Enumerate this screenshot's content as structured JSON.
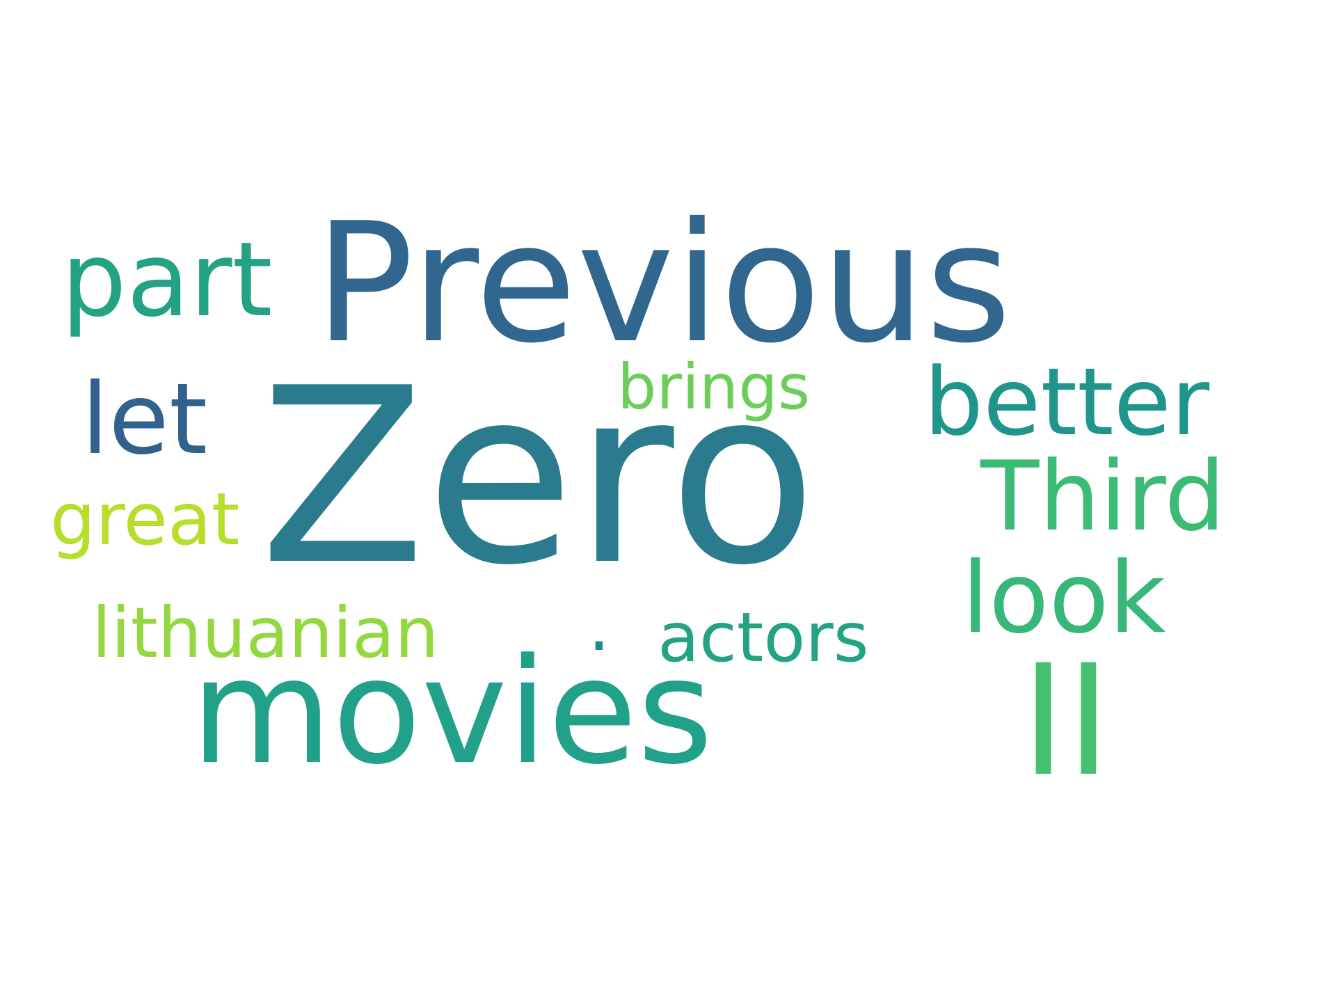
{
  "words": [
    {
      "text": "Zero",
      "color": "#2a7b8e"
    },
    {
      "text": "Previous",
      "color": "#31678e"
    },
    {
      "text": "movies",
      "color": "#21a08a"
    },
    {
      "text": "II",
      "color": "#45c06f"
    },
    {
      "text": "part",
      "color": "#24a384"
    },
    {
      "text": "better",
      "color": "#1f958b"
    },
    {
      "text": "let",
      "color": "#31628d"
    },
    {
      "text": "Third",
      "color": "#3cbb75"
    },
    {
      "text": "look",
      "color": "#37b878"
    },
    {
      "text": "brings",
      "color": "#6ccd59"
    },
    {
      "text": "great",
      "color": "#b6de2b"
    },
    {
      "text": "lithuanian",
      "color": "#93d741"
    },
    {
      "text": ".",
      "color": "#228c8d"
    },
    {
      "text": "actors",
      "color": "#23a383"
    }
  ]
}
